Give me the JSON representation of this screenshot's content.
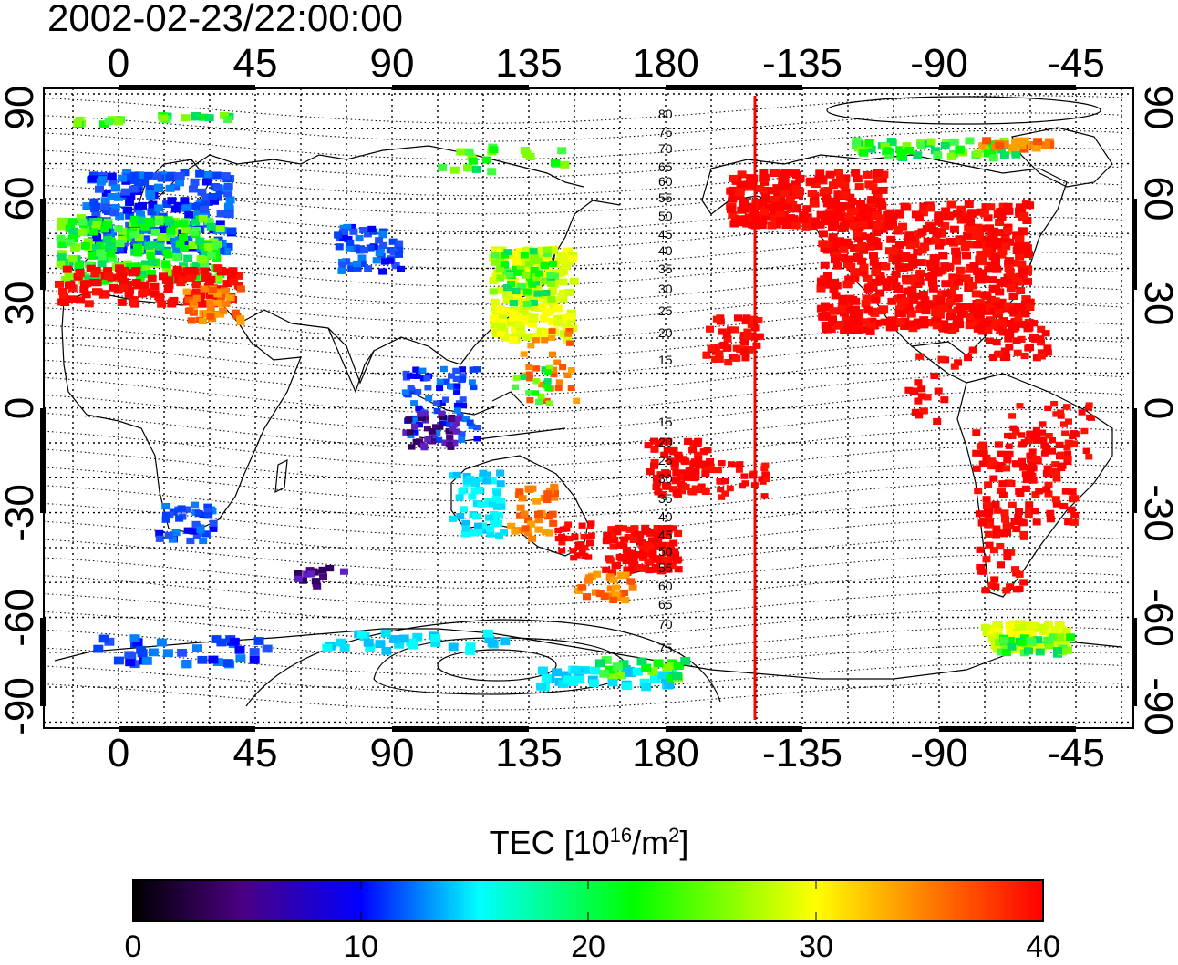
{
  "title": "2002-02-23/22:00:00",
  "lon_ticks": [
    "0",
    "45",
    "90",
    "135",
    "180",
    "-135",
    "-90",
    "-45"
  ],
  "lat_ticks": [
    "90",
    "60",
    "30",
    "0",
    "-30",
    "-60",
    "-90"
  ],
  "contour_labels_north": [
    "80",
    "75",
    "70",
    "65",
    "60",
    "55",
    "50",
    "45",
    "40",
    "35",
    "30",
    "25",
    "20",
    "15"
  ],
  "contour_labels_south": [
    "15",
    "20",
    "25",
    "30",
    "35",
    "40",
    "45",
    "50",
    "55",
    "60",
    "65",
    "70",
    "75"
  ],
  "colorbar": {
    "title_main": "TEC  [10",
    "title_exp1": "16",
    "title_mid": "/m",
    "title_exp2": "2",
    "title_end": "]",
    "ticks": [
      "0",
      "10",
      "20",
      "30",
      "40"
    ],
    "stops": [
      "#000000",
      "#4b0082",
      "#0000ff",
      "#00ffff",
      "#00ff00",
      "#ffff00",
      "#ff8000",
      "#ff0000"
    ]
  },
  "colors": {
    "frame": "#000000",
    "grid": "#000000",
    "terminator": "#ff0000",
    "high_tec": "#ff0000"
  }
}
